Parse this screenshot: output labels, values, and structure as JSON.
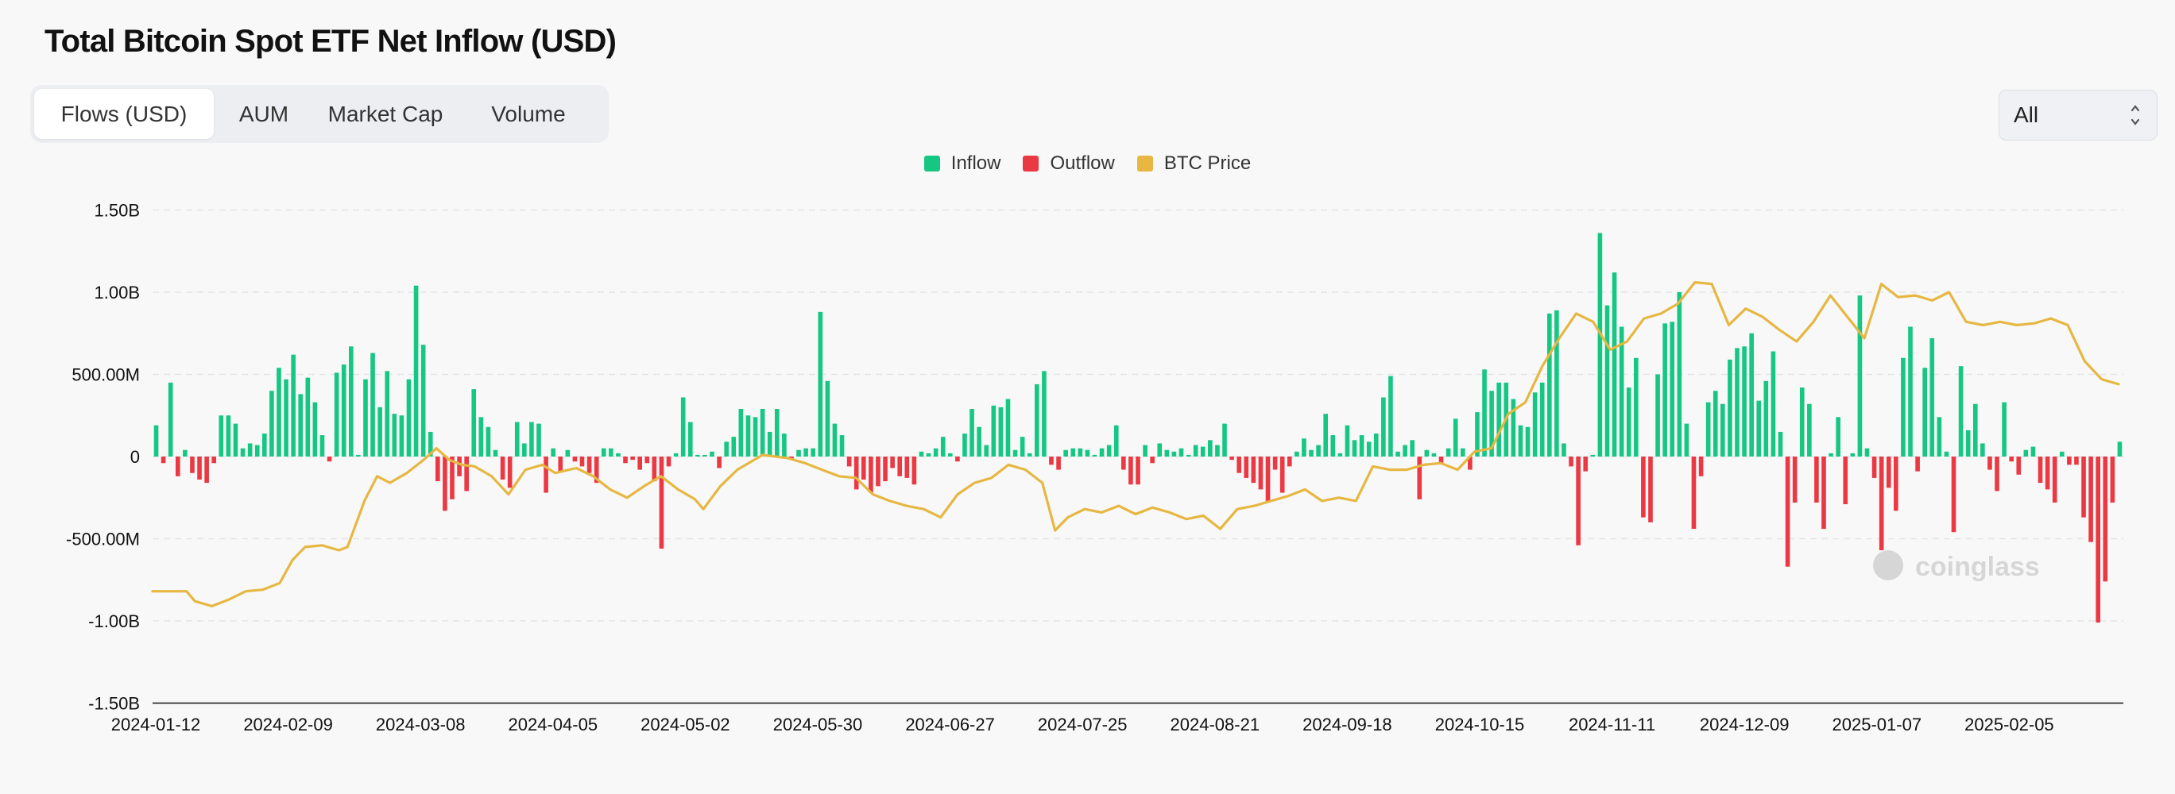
{
  "title": "Total Bitcoin Spot ETF Net Inflow (USD)",
  "tabs": [
    {
      "label": "Flows (USD)",
      "active": true
    },
    {
      "label": "AUM",
      "active": false
    },
    {
      "label": "Market Cap",
      "active": false
    },
    {
      "label": "Volume",
      "active": false
    }
  ],
  "range_select": {
    "value": "All"
  },
  "colors": {
    "inflow": "#16c784",
    "outflow": "#ea3943",
    "btc_price": "#e6b741",
    "grid": "#e3e4e8"
  },
  "watermark": "coinglass",
  "chart_data": {
    "type": "bar",
    "title": "Total Bitcoin Spot ETF Net Inflow (USD)",
    "legend": [
      {
        "label": "Inflow",
        "color": "#16c784"
      },
      {
        "label": "Outflow",
        "color": "#ea3943"
      },
      {
        "label": "BTC Price",
        "color": "#e6b741"
      }
    ],
    "legend_position": "top-center",
    "y_ticks": [
      {
        "value": 1.5,
        "label": "1.50B"
      },
      {
        "value": 1.0,
        "label": "1.00B"
      },
      {
        "value": 0.5,
        "label": "500.00M"
      },
      {
        "value": 0,
        "label": "0"
      },
      {
        "value": -0.5,
        "label": "-500.00M"
      },
      {
        "value": -1.0,
        "label": "-1.00B"
      },
      {
        "value": -1.5,
        "label": "-1.50B"
      }
    ],
    "y_unit": "USD billions",
    "ylim": [
      -1.5,
      1.5
    ],
    "grid": true,
    "x_tick_labels": [
      "2024-01-12",
      "2024-02-09",
      "2024-03-08",
      "2024-04-05",
      "2024-05-02",
      "2024-05-30",
      "2024-06-27",
      "2024-07-25",
      "2024-08-21",
      "2024-09-18",
      "2024-10-15",
      "2024-11-11",
      "2024-12-09",
      "2025-01-07",
      "2025-02-05"
    ],
    "bars": [
      0.19,
      -0.04,
      0.45,
      -0.12,
      0.04,
      -0.1,
      -0.14,
      -0.16,
      -0.04,
      0.25,
      0.25,
      0.2,
      0.05,
      0.08,
      0.07,
      0.14,
      0.4,
      0.54,
      0.47,
      0.62,
      0.38,
      0.48,
      0.33,
      0.13,
      -0.03,
      0.51,
      0.56,
      0.67,
      0.01,
      0.47,
      0.63,
      0.3,
      0.52,
      0.26,
      0.25,
      0.47,
      1.04,
      0.68,
      0.15,
      -0.15,
      -0.33,
      -0.26,
      -0.12,
      -0.21,
      0.41,
      0.24,
      0.18,
      0.04,
      -0.14,
      -0.19,
      0.21,
      0.08,
      0.21,
      0.2,
      -0.22,
      0.05,
      -0.09,
      0.04,
      -0.03,
      -0.06,
      -0.1,
      -0.16,
      0.05,
      0.05,
      0.02,
      -0.04,
      -0.02,
      -0.08,
      -0.04,
      -0.15,
      -0.56,
      -0.06,
      0.02,
      0.36,
      0.21,
      0.01,
      0.01,
      0.03,
      -0.07,
      0.09,
      0.12,
      0.29,
      0.25,
      0.24,
      0.29,
      0.15,
      0.29,
      0.14,
      -0.02,
      0.04,
      0.05,
      0.05,
      0.88,
      0.46,
      0.2,
      0.13,
      -0.06,
      -0.2,
      -0.14,
      -0.22,
      -0.18,
      -0.15,
      -0.07,
      -0.12,
      -0.13,
      -0.17,
      0.03,
      0.02,
      0.05,
      0.12,
      0.02,
      -0.03,
      0.14,
      0.29,
      0.18,
      0.07,
      0.31,
      0.3,
      0.35,
      0.04,
      0.12,
      0.02,
      0.44,
      0.52,
      -0.05,
      -0.08,
      0.04,
      0.05,
      0.05,
      0.04,
      0.01,
      0.05,
      0.07,
      0.19,
      -0.08,
      -0.17,
      -0.17,
      0.07,
      -0.04,
      0.08,
      0.04,
      0.03,
      0.05,
      0.01,
      0.07,
      0.06,
      0.1,
      0.07,
      0.2,
      -0.02,
      -0.1,
      -0.13,
      -0.16,
      -0.2,
      -0.28,
      -0.08,
      -0.22,
      -0.06,
      0.03,
      0.11,
      0.04,
      0.07,
      0.26,
      0.13,
      0.02,
      0.19,
      0.1,
      0.13,
      0.09,
      0.14,
      0.36,
      0.49,
      0.03,
      0.07,
      0.1,
      -0.26,
      0.04,
      0.02,
      -0.04,
      0.05,
      0.23,
      0.05,
      -0.08,
      0.27,
      0.53,
      0.4,
      0.45,
      0.45,
      0.35,
      0.19,
      0.18,
      0.39,
      0.45,
      0.87,
      0.89,
      0.08,
      -0.06,
      -0.54,
      -0.09,
      0.01,
      1.36,
      0.92,
      1.12,
      0.79,
      0.42,
      0.6,
      -0.37,
      -0.4,
      0.5,
      0.81,
      0.82,
      1.0,
      0.2,
      -0.44,
      -0.12,
      0.33,
      0.4,
      0.32,
      0.59,
      0.66,
      0.67,
      0.75,
      0.34,
      0.46,
      0.64,
      0.15,
      -0.67,
      -0.28,
      0.42,
      0.32,
      -0.28,
      -0.44,
      0.02,
      0.24,
      -0.29,
      0.02,
      0.98,
      0.05,
      -0.13,
      -0.57,
      -0.19,
      -0.33,
      0.6,
      0.79,
      -0.09,
      0.54,
      0.72,
      0.24,
      0.03,
      -0.46,
      0.55,
      0.16,
      0.32,
      0.08,
      -0.08,
      -0.21,
      0.33,
      -0.03,
      -0.11,
      0.04,
      0.06,
      -0.16,
      -0.2,
      -0.28,
      0.03,
      -0.05,
      -0.05,
      -0.37,
      -0.52,
      -1.01,
      -0.76,
      -0.28,
      0.09
    ],
    "btc_price_line_approx": [
      [
        0,
        -0.82
      ],
      [
        8,
        -0.82
      ],
      [
        10,
        -0.88
      ],
      [
        14,
        -0.91
      ],
      [
        18,
        -0.87
      ],
      [
        22,
        -0.82
      ],
      [
        26,
        -0.81
      ],
      [
        30,
        -0.77
      ],
      [
        33,
        -0.63
      ],
      [
        36,
        -0.55
      ],
      [
        40,
        -0.54
      ],
      [
        44,
        -0.57
      ],
      [
        46,
        -0.55
      ],
      [
        50,
        -0.27
      ],
      [
        53,
        -0.12
      ],
      [
        56,
        -0.16
      ],
      [
        60,
        -0.1
      ],
      [
        64,
        -0.02
      ],
      [
        67,
        0.05
      ],
      [
        70,
        -0.02
      ],
      [
        73,
        -0.05
      ],
      [
        76,
        -0.06
      ],
      [
        80,
        -0.12
      ],
      [
        84,
        -0.23
      ],
      [
        88,
        -0.08
      ],
      [
        92,
        -0.05
      ],
      [
        95,
        -0.1
      ],
      [
        100,
        -0.07
      ],
      [
        104,
        -0.12
      ],
      [
        108,
        -0.2
      ],
      [
        112,
        -0.25
      ],
      [
        116,
        -0.18
      ],
      [
        120,
        -0.12
      ],
      [
        124,
        -0.2
      ],
      [
        128,
        -0.26
      ],
      [
        130,
        -0.32
      ],
      [
        134,
        -0.18
      ],
      [
        138,
        -0.08
      ],
      [
        144,
        0.01
      ],
      [
        150,
        -0.01
      ],
      [
        154,
        -0.04
      ],
      [
        158,
        -0.08
      ],
      [
        162,
        -0.12
      ],
      [
        166,
        -0.13
      ],
      [
        170,
        -0.23
      ],
      [
        174,
        -0.27
      ],
      [
        178,
        -0.3
      ],
      [
        182,
        -0.32
      ],
      [
        186,
        -0.37
      ],
      [
        190,
        -0.23
      ],
      [
        194,
        -0.16
      ],
      [
        198,
        -0.13
      ],
      [
        202,
        -0.05
      ],
      [
        206,
        -0.08
      ],
      [
        210,
        -0.16
      ],
      [
        213,
        -0.45
      ],
      [
        216,
        -0.37
      ],
      [
        220,
        -0.32
      ],
      [
        224,
        -0.34
      ],
      [
        228,
        -0.3
      ],
      [
        232,
        -0.35
      ],
      [
        236,
        -0.31
      ],
      [
        240,
        -0.34
      ],
      [
        244,
        -0.38
      ],
      [
        248,
        -0.36
      ],
      [
        252,
        -0.44
      ],
      [
        256,
        -0.32
      ],
      [
        260,
        -0.3
      ],
      [
        264,
        -0.27
      ],
      [
        268,
        -0.24
      ],
      [
        272,
        -0.2
      ],
      [
        276,
        -0.27
      ],
      [
        280,
        -0.25
      ],
      [
        284,
        -0.27
      ],
      [
        288,
        -0.06
      ],
      [
        292,
        -0.08
      ],
      [
        296,
        -0.08
      ],
      [
        300,
        -0.05
      ],
      [
        304,
        -0.04
      ],
      [
        308,
        -0.08
      ],
      [
        312,
        0.03
      ],
      [
        316,
        0.05
      ],
      [
        320,
        0.26
      ],
      [
        324,
        0.33
      ],
      [
        328,
        0.55
      ],
      [
        332,
        0.72
      ],
      [
        336,
        0.87
      ],
      [
        340,
        0.82
      ],
      [
        344,
        0.65
      ],
      [
        348,
        0.7
      ],
      [
        352,
        0.84
      ],
      [
        356,
        0.87
      ],
      [
        360,
        0.93
      ],
      [
        364,
        1.06
      ],
      [
        368,
        1.05
      ],
      [
        372,
        0.8
      ],
      [
        376,
        0.9
      ],
      [
        380,
        0.85
      ],
      [
        384,
        0.77
      ],
      [
        388,
        0.7
      ],
      [
        392,
        0.82
      ],
      [
        396,
        0.98
      ],
      [
        400,
        0.85
      ],
      [
        404,
        0.72
      ],
      [
        408,
        1.05
      ],
      [
        412,
        0.97
      ],
      [
        416,
        0.98
      ],
      [
        420,
        0.95
      ],
      [
        424,
        1.0
      ],
      [
        428,
        0.82
      ],
      [
        432,
        0.8
      ],
      [
        436,
        0.82
      ],
      [
        440,
        0.8
      ],
      [
        444,
        0.81
      ],
      [
        448,
        0.84
      ],
      [
        452,
        0.8
      ],
      [
        456,
        0.58
      ],
      [
        460,
        0.47
      ],
      [
        464,
        0.44
      ]
    ],
    "btc_price_axis_note": "BTC price line drawn on hidden secondary axis; positions given in primary axis units (B) for rendering"
  }
}
